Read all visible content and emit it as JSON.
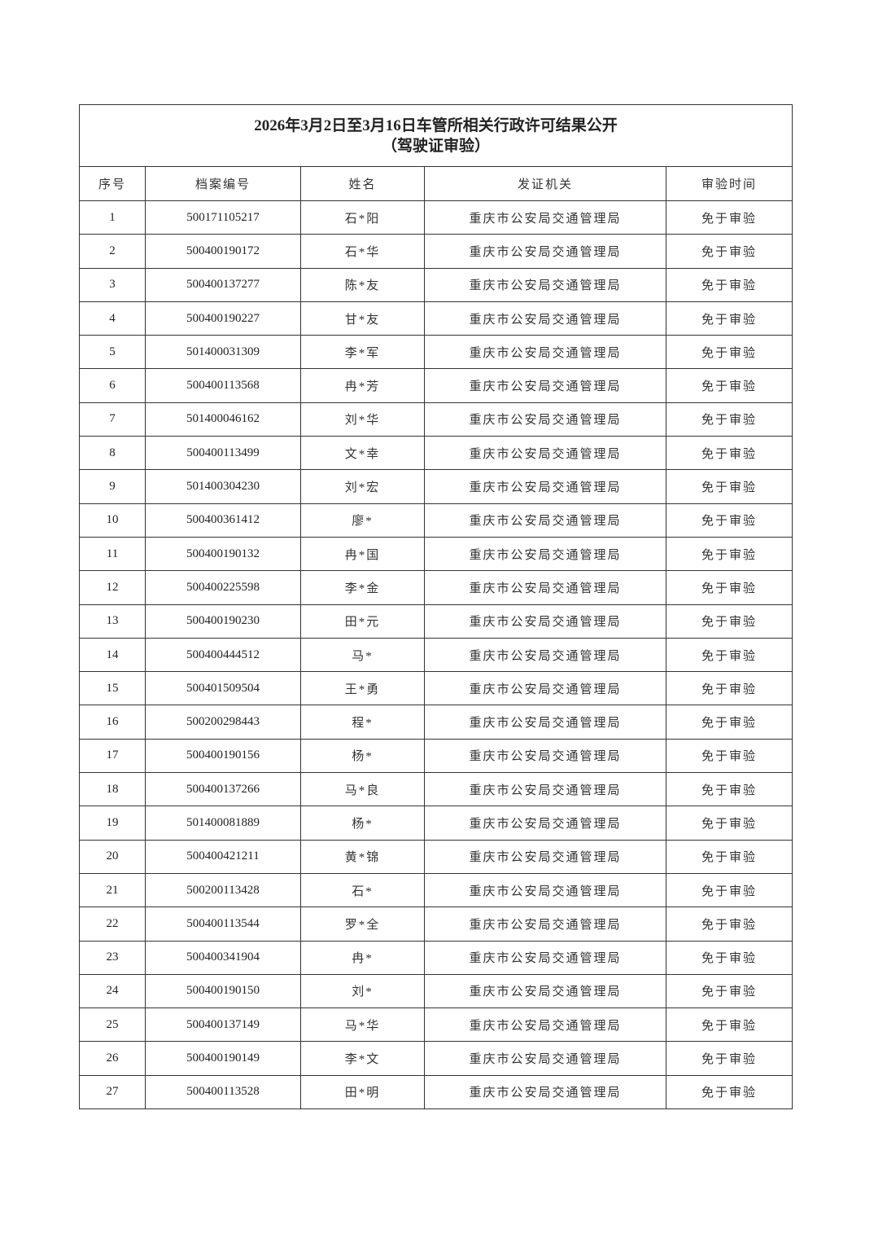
{
  "document": {
    "title": "2026年3月2日至3月16日车管所相关行政许可结果公开",
    "subtitle": "（驾驶证审验）",
    "columns": [
      "序号",
      "档案编号",
      "姓名",
      "发证机关",
      "审验时间"
    ],
    "rows": [
      [
        "1",
        "500171105217",
        "石*阳",
        "重庆市公安局交通管理局",
        "免于审验"
      ],
      [
        "2",
        "500400190172",
        "石*华",
        "重庆市公安局交通管理局",
        "免于审验"
      ],
      [
        "3",
        "500400137277",
        "陈*友",
        "重庆市公安局交通管理局",
        "免于审验"
      ],
      [
        "4",
        "500400190227",
        "甘*友",
        "重庆市公安局交通管理局",
        "免于审验"
      ],
      [
        "5",
        "501400031309",
        "李*军",
        "重庆市公安局交通管理局",
        "免于审验"
      ],
      [
        "6",
        "500400113568",
        "冉*芳",
        "重庆市公安局交通管理局",
        "免于审验"
      ],
      [
        "7",
        "501400046162",
        "刘*华",
        "重庆市公安局交通管理局",
        "免于审验"
      ],
      [
        "8",
        "500400113499",
        "文*幸",
        "重庆市公安局交通管理局",
        "免于审验"
      ],
      [
        "9",
        "501400304230",
        "刘*宏",
        "重庆市公安局交通管理局",
        "免于审验"
      ],
      [
        "10",
        "500400361412",
        "廖*",
        "重庆市公安局交通管理局",
        "免于审验"
      ],
      [
        "11",
        "500400190132",
        "冉*国",
        "重庆市公安局交通管理局",
        "免于审验"
      ],
      [
        "12",
        "500400225598",
        "李*金",
        "重庆市公安局交通管理局",
        "免于审验"
      ],
      [
        "13",
        "500400190230",
        "田*元",
        "重庆市公安局交通管理局",
        "免于审验"
      ],
      [
        "14",
        "500400444512",
        "马*",
        "重庆市公安局交通管理局",
        "免于审验"
      ],
      [
        "15",
        "500401509504",
        "王*勇",
        "重庆市公安局交通管理局",
        "免于审验"
      ],
      [
        "16",
        "500200298443",
        "程*",
        "重庆市公安局交通管理局",
        "免于审验"
      ],
      [
        "17",
        "500400190156",
        "杨*",
        "重庆市公安局交通管理局",
        "免于审验"
      ],
      [
        "18",
        "500400137266",
        "马*良",
        "重庆市公安局交通管理局",
        "免于审验"
      ],
      [
        "19",
        "501400081889",
        "杨*",
        "重庆市公安局交通管理局",
        "免于审验"
      ],
      [
        "20",
        "500400421211",
        "黄*锦",
        "重庆市公安局交通管理局",
        "免于审验"
      ],
      [
        "21",
        "500200113428",
        "石*",
        "重庆市公安局交通管理局",
        "免于审验"
      ],
      [
        "22",
        "500400113544",
        "罗*全",
        "重庆市公安局交通管理局",
        "免于审验"
      ],
      [
        "23",
        "500400341904",
        "冉*",
        "重庆市公安局交通管理局",
        "免于审验"
      ],
      [
        "24",
        "500400190150",
        "刘*",
        "重庆市公安局交通管理局",
        "免于审验"
      ],
      [
        "25",
        "500400137149",
        "马*华",
        "重庆市公安局交通管理局",
        "免于审验"
      ],
      [
        "26",
        "500400190149",
        "李*文",
        "重庆市公安局交通管理局",
        "免于审验"
      ],
      [
        "27",
        "500400113528",
        "田*明",
        "重庆市公安局交通管理局",
        "免于审验"
      ]
    ]
  }
}
